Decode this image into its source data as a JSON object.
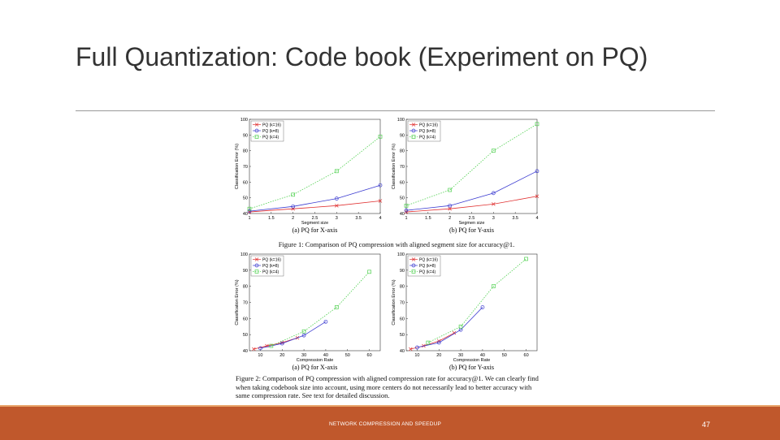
{
  "slide": {
    "title": "Full Quantization: Code book (Experiment on PQ)",
    "footer": "NETWORK COMPRESSION AND SPEEDUP",
    "page_number": "47"
  },
  "figure": {
    "caption_1": "Figure 1: Comparison of PQ compression with aligned segment size for accuracy@1.",
    "caption_2": "Figure 2: Comparison of PQ compression with aligned compression rate for accuracy@1. We can clearly find when taking codebook size into account, using more centers do not necessarily lead to better accuracy with same compression rate. See text for detailed discussion."
  },
  "chart_data": [
    {
      "type": "line",
      "caption": "(a) PQ for X-axis",
      "xlabel": "Segment size",
      "ylabel": "Classification Error (%)",
      "xlim": [
        1,
        4
      ],
      "xticks": [
        1,
        1.5,
        2,
        2.5,
        3,
        3.5,
        4
      ],
      "ylim": [
        40,
        100
      ],
      "yticks": [
        40,
        50,
        60,
        70,
        80,
        90,
        100
      ],
      "series": [
        {
          "name": "PQ (k=16)",
          "color": "#e03030",
          "marker": "x",
          "linestyle": "solid",
          "x": [
            1,
            2,
            3,
            4
          ],
          "values": [
            41,
            43,
            45,
            48
          ]
        },
        {
          "name": "PQ (k=8)",
          "color": "#3a3ad0",
          "marker": "o",
          "linestyle": "solid",
          "x": [
            1,
            2,
            3,
            4
          ],
          "values": [
            41.5,
            44.5,
            49.5,
            58
          ]
        },
        {
          "name": "PQ (k=4)",
          "color": "#50d050",
          "marker": "s",
          "linestyle": "dotted",
          "x": [
            1,
            2,
            3,
            4
          ],
          "values": [
            43,
            52,
            67,
            89
          ]
        }
      ]
    },
    {
      "type": "line",
      "caption": "(b) PQ for Y-axis",
      "xlabel": "Segmen size",
      "ylabel": "Classification Error (%)",
      "xlim": [
        1,
        4
      ],
      "xticks": [
        1,
        1.5,
        2,
        2.5,
        3,
        3.5,
        4
      ],
      "ylim": [
        40,
        100
      ],
      "yticks": [
        40,
        50,
        60,
        70,
        80,
        90,
        100
      ],
      "series": [
        {
          "name": "PQ (k=16)",
          "color": "#e03030",
          "marker": "x",
          "linestyle": "solid",
          "x": [
            1,
            2,
            3,
            4
          ],
          "values": [
            41,
            43,
            46,
            51
          ]
        },
        {
          "name": "PQ (k=8)",
          "color": "#3a3ad0",
          "marker": "o",
          "linestyle": "solid",
          "x": [
            1,
            2,
            3,
            4
          ],
          "values": [
            42,
            45,
            53,
            67
          ]
        },
        {
          "name": "PQ (k=4)",
          "color": "#50d050",
          "marker": "s",
          "linestyle": "dotted",
          "x": [
            1,
            2,
            3,
            4
          ],
          "values": [
            45,
            55,
            80,
            97
          ]
        }
      ]
    },
    {
      "type": "line",
      "caption": "(a) PQ for X-axis",
      "xlabel": "Compression Rate",
      "ylabel": "Classification Error (%)",
      "xlim": [
        5,
        65
      ],
      "xticks": [
        10,
        20,
        30,
        40,
        50,
        60
      ],
      "ylim": [
        40,
        100
      ],
      "yticks": [
        40,
        50,
        60,
        70,
        80,
        90,
        100
      ],
      "series": [
        {
          "name": "PQ (k=16)",
          "color": "#e03030",
          "marker": "x",
          "linestyle": "solid",
          "x": [
            7,
            13,
            20,
            27
          ],
          "values": [
            41,
            43,
            45,
            48
          ]
        },
        {
          "name": "PQ (k=8)",
          "color": "#3a3ad0",
          "marker": "o",
          "linestyle": "solid",
          "x": [
            10,
            20,
            30,
            40
          ],
          "values": [
            41.5,
            44.5,
            49.5,
            58
          ]
        },
        {
          "name": "PQ (k=4)",
          "color": "#50d050",
          "marker": "s",
          "linestyle": "dotted",
          "x": [
            15,
            30,
            45,
            60
          ],
          "values": [
            43,
            52,
            67,
            89
          ]
        }
      ]
    },
    {
      "type": "line",
      "caption": "(b) PQ for Y-axis",
      "xlabel": "Compression Rate",
      "ylabel": "Classification Error (%)",
      "xlim": [
        5,
        65
      ],
      "xticks": [
        10,
        20,
        30,
        40,
        50,
        60
      ],
      "ylim": [
        40,
        100
      ],
      "yticks": [
        40,
        50,
        60,
        70,
        80,
        90,
        100
      ],
      "series": [
        {
          "name": "PQ (k=16)",
          "color": "#e03030",
          "marker": "x",
          "linestyle": "solid",
          "x": [
            7,
            13,
            20,
            27
          ],
          "values": [
            41,
            43,
            46,
            51
          ]
        },
        {
          "name": "PQ (k=8)",
          "color": "#3a3ad0",
          "marker": "o",
          "linestyle": "solid",
          "x": [
            10,
            20,
            30,
            40
          ],
          "values": [
            42,
            45,
            53,
            67
          ]
        },
        {
          "name": "PQ (k=4)",
          "color": "#50d050",
          "marker": "s",
          "linestyle": "dotted",
          "x": [
            15,
            30,
            45,
            60
          ],
          "values": [
            45,
            55,
            80,
            97
          ]
        }
      ]
    }
  ]
}
